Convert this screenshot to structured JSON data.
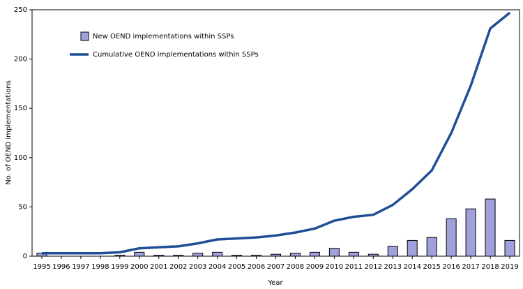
{
  "chart_data": {
    "type": "bar",
    "xlabel": "Year",
    "ylabel": "No. of OEND implementations",
    "categories": [
      "1995",
      "1996",
      "1997",
      "1998",
      "1999",
      "2000",
      "2001",
      "2002",
      "2003",
      "2004",
      "2005",
      "2006",
      "2007",
      "2008",
      "2009",
      "2010",
      "2011",
      "2012",
      "2013",
      "2014",
      "2015",
      "2016",
      "2017",
      "2018",
      "2019"
    ],
    "series": [
      {
        "name": "New OEND implementations within SSPs",
        "type": "bar",
        "color": "#a0a0dc",
        "values": [
          3,
          0,
          0,
          0,
          1,
          4,
          1,
          1,
          3,
          4,
          1,
          1,
          2,
          3,
          4,
          8,
          4,
          2,
          10,
          16,
          19,
          38,
          48,
          58,
          16
        ]
      },
      {
        "name": "Cumulative OEND implementations within SSPs",
        "type": "line",
        "color": "#1f4e96",
        "values": [
          3,
          3,
          3,
          3,
          4,
          8,
          9,
          10,
          13,
          17,
          18,
          19,
          21,
          24,
          28,
          36,
          40,
          42,
          52,
          68,
          87,
          125,
          173,
          231,
          247
        ]
      }
    ],
    "ylim": [
      0,
      250
    ],
    "yticks": [
      0,
      50,
      100,
      150,
      200,
      250
    ],
    "grid": false
  }
}
